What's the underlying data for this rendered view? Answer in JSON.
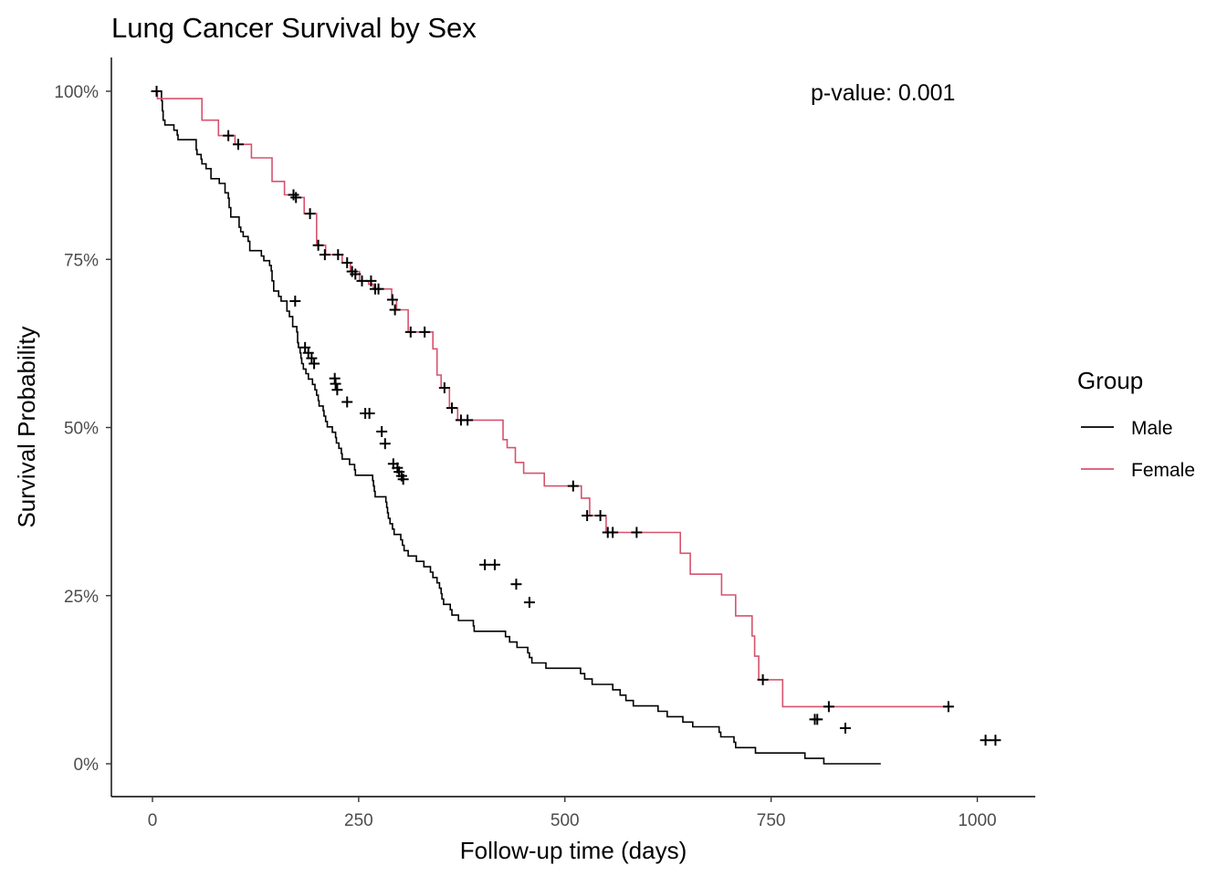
{
  "chart_data": {
    "type": "line",
    "title": "Lung Cancer Survival by Sex",
    "xlabel": "Follow-up time (days)",
    "ylabel": "Survival Probability",
    "xlim": [
      -50,
      1070
    ],
    "ylim": [
      -0.05,
      1.05
    ],
    "x_ticks": [
      0,
      250,
      500,
      750,
      1000
    ],
    "x_tick_labels": [
      "0",
      "250",
      "500",
      "750",
      "1000"
    ],
    "y_ticks": [
      0,
      0.25,
      0.5,
      0.75,
      1.0
    ],
    "y_tick_labels": [
      "0%",
      "25%",
      "50%",
      "75%",
      "100%"
    ],
    "grid": false,
    "annotation": "p-value: 0.001",
    "legend": {
      "title": "Group",
      "position": "right"
    },
    "series": [
      {
        "name": "Male",
        "color": "#000000",
        "step_points": [
          [
            0,
            1.0
          ],
          [
            11,
            0.986
          ],
          [
            12,
            0.971
          ],
          [
            13,
            0.957
          ],
          [
            15,
            0.95
          ],
          [
            26,
            0.942
          ],
          [
            30,
            0.935
          ],
          [
            31,
            0.928
          ],
          [
            53,
            0.913
          ],
          [
            54,
            0.906
          ],
          [
            59,
            0.899
          ],
          [
            60,
            0.892
          ],
          [
            65,
            0.885
          ],
          [
            71,
            0.87
          ],
          [
            81,
            0.863
          ],
          [
            88,
            0.849
          ],
          [
            92,
            0.841
          ],
          [
            93,
            0.827
          ],
          [
            95,
            0.813
          ],
          [
            105,
            0.798
          ],
          [
            107,
            0.791
          ],
          [
            110,
            0.784
          ],
          [
            116,
            0.777
          ],
          [
            118,
            0.763
          ],
          [
            132,
            0.755
          ],
          [
            135,
            0.748
          ],
          [
            142,
            0.741
          ],
          [
            144,
            0.733
          ],
          [
            145,
            0.718
          ],
          [
            147,
            0.703
          ],
          [
            153,
            0.695
          ],
          [
            156,
            0.688
          ],
          [
            163,
            0.673
          ],
          [
            166,
            0.665
          ],
          [
            170,
            0.65
          ],
          [
            175,
            0.642
          ],
          [
            176,
            0.626
          ],
          [
            177,
            0.619
          ],
          [
            179,
            0.611
          ],
          [
            180,
            0.603
          ],
          [
            181,
            0.595
          ],
          [
            183,
            0.587
          ],
          [
            186,
            0.58
          ],
          [
            189,
            0.572
          ],
          [
            194,
            0.564
          ],
          [
            197,
            0.556
          ],
          [
            199,
            0.548
          ],
          [
            201,
            0.54
          ],
          [
            202,
            0.532
          ],
          [
            207,
            0.525
          ],
          [
            208,
            0.517
          ],
          [
            210,
            0.509
          ],
          [
            212,
            0.501
          ],
          [
            218,
            0.493
          ],
          [
            222,
            0.485
          ],
          [
            223,
            0.477
          ],
          [
            226,
            0.469
          ],
          [
            229,
            0.461
          ],
          [
            230,
            0.453
          ],
          [
            239,
            0.445
          ],
          [
            245,
            0.437
          ],
          [
            246,
            0.429
          ],
          [
            267,
            0.421
          ],
          [
            268,
            0.413
          ],
          [
            269,
            0.405
          ],
          [
            270,
            0.397
          ],
          [
            283,
            0.389
          ],
          [
            284,
            0.381
          ],
          [
            285,
            0.373
          ],
          [
            286,
            0.365
          ],
          [
            288,
            0.357
          ],
          [
            291,
            0.349
          ],
          [
            293,
            0.341
          ],
          [
            301,
            0.333
          ],
          [
            303,
            0.325
          ],
          [
            305,
            0.317
          ],
          [
            310,
            0.309
          ],
          [
            320,
            0.301
          ],
          [
            329,
            0.293
          ],
          [
            337,
            0.285
          ],
          [
            340,
            0.277
          ],
          [
            345,
            0.269
          ],
          [
            348,
            0.261
          ],
          [
            350,
            0.253
          ],
          [
            351,
            0.245
          ],
          [
            353,
            0.237
          ],
          [
            361,
            0.229
          ],
          [
            363,
            0.221
          ],
          [
            371,
            0.213
          ],
          [
            389,
            0.205
          ],
          [
            390,
            0.197
          ],
          [
            428,
            0.189
          ],
          [
            433,
            0.181
          ],
          [
            442,
            0.173
          ],
          [
            455,
            0.165
          ],
          [
            457,
            0.158
          ],
          [
            460,
            0.15
          ],
          [
            477,
            0.142
          ],
          [
            519,
            0.134
          ],
          [
            524,
            0.126
          ],
          [
            533,
            0.118
          ],
          [
            558,
            0.11
          ],
          [
            567,
            0.102
          ],
          [
            574,
            0.094
          ],
          [
            583,
            0.086
          ],
          [
            613,
            0.078
          ],
          [
            624,
            0.07
          ],
          [
            643,
            0.062
          ],
          [
            655,
            0.055
          ],
          [
            687,
            0.047
          ],
          [
            689,
            0.04
          ],
          [
            705,
            0.032
          ],
          [
            707,
            0.024
          ],
          [
            731,
            0.016
          ],
          [
            791,
            0.008
          ],
          [
            814,
            0.0
          ],
          [
            883,
            0.0
          ]
        ],
        "censor_points": [
          [
            5,
            1.0
          ],
          [
            173,
            0.688
          ],
          [
            185,
            0.619
          ],
          [
            189,
            0.611
          ],
          [
            193,
            0.603
          ],
          [
            196,
            0.595
          ],
          [
            221,
            0.573
          ],
          [
            222,
            0.565
          ],
          [
            224,
            0.556
          ],
          [
            236,
            0.538
          ],
          [
            258,
            0.521
          ],
          [
            263,
            0.521
          ],
          [
            278,
            0.494
          ],
          [
            282,
            0.476
          ],
          [
            292,
            0.446
          ],
          [
            297,
            0.44
          ],
          [
            299,
            0.434
          ],
          [
            302,
            0.428
          ],
          [
            304,
            0.423
          ],
          [
            403,
            0.296
          ],
          [
            415,
            0.296
          ],
          [
            441,
            0.267
          ],
          [
            457,
            0.24
          ],
          [
            803,
            0.066
          ],
          [
            806,
            0.066
          ],
          [
            840,
            0.053
          ],
          [
            1010,
            0.035
          ],
          [
            1022,
            0.035
          ]
        ]
      },
      {
        "name": "Female",
        "color": "#d6536d",
        "step_points": [
          [
            0,
            1.0
          ],
          [
            6,
            0.989
          ],
          [
            60,
            0.957
          ],
          [
            80,
            0.934
          ],
          [
            100,
            0.921
          ],
          [
            120,
            0.901
          ],
          [
            145,
            0.866
          ],
          [
            160,
            0.846
          ],
          [
            171,
            0.842
          ],
          [
            184,
            0.818
          ],
          [
            199,
            0.771
          ],
          [
            210,
            0.757
          ],
          [
            230,
            0.745
          ],
          [
            240,
            0.732
          ],
          [
            251,
            0.718
          ],
          [
            262,
            0.713
          ],
          [
            268,
            0.706
          ],
          [
            290,
            0.69
          ],
          [
            296,
            0.675
          ],
          [
            310,
            0.642
          ],
          [
            340,
            0.617
          ],
          [
            345,
            0.578
          ],
          [
            350,
            0.559
          ],
          [
            360,
            0.529
          ],
          [
            370,
            0.511
          ],
          [
            390,
            0.511
          ],
          [
            425,
            0.482
          ],
          [
            430,
            0.47
          ],
          [
            440,
            0.448
          ],
          [
            450,
            0.432
          ],
          [
            475,
            0.413
          ],
          [
            520,
            0.395
          ],
          [
            530,
            0.369
          ],
          [
            550,
            0.344
          ],
          [
            640,
            0.313
          ],
          [
            652,
            0.282
          ],
          [
            690,
            0.251
          ],
          [
            707,
            0.22
          ],
          [
            727,
            0.19
          ],
          [
            730,
            0.16
          ],
          [
            735,
            0.125
          ],
          [
            764,
            0.085
          ],
          [
            965,
            0.085
          ]
        ],
        "censor_points": [
          [
            92,
            0.934
          ],
          [
            104,
            0.921
          ],
          [
            171,
            0.846
          ],
          [
            174,
            0.842
          ],
          [
            191,
            0.818
          ],
          [
            201,
            0.771
          ],
          [
            209,
            0.757
          ],
          [
            225,
            0.757
          ],
          [
            236,
            0.745
          ],
          [
            242,
            0.732
          ],
          [
            246,
            0.728
          ],
          [
            254,
            0.718
          ],
          [
            265,
            0.718
          ],
          [
            270,
            0.706
          ],
          [
            274,
            0.706
          ],
          [
            291,
            0.69
          ],
          [
            294,
            0.675
          ],
          [
            313,
            0.642
          ],
          [
            330,
            0.642
          ],
          [
            354,
            0.559
          ],
          [
            363,
            0.529
          ],
          [
            374,
            0.511
          ],
          [
            382,
            0.511
          ],
          [
            510,
            0.413
          ],
          [
            527,
            0.369
          ],
          [
            543,
            0.369
          ],
          [
            552,
            0.344
          ],
          [
            558,
            0.344
          ],
          [
            587,
            0.344
          ],
          [
            740,
            0.125
          ],
          [
            820,
            0.085
          ],
          [
            965,
            0.085
          ]
        ]
      }
    ]
  }
}
